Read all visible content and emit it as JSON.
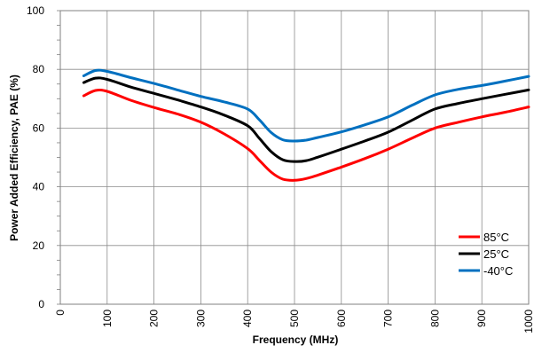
{
  "chart_data": {
    "type": "line",
    "title": "",
    "xlabel": "Frequency (MHz)",
    "ylabel": "Power Added  Efficiency, PAE (%)",
    "xlim": [
      0,
      1000
    ],
    "ylim": [
      0,
      100
    ],
    "x_ticks": [
      0,
      100,
      200,
      300,
      400,
      500,
      600,
      700,
      800,
      900,
      1000
    ],
    "y_ticks": [
      0,
      20,
      40,
      60,
      80,
      100
    ],
    "x_tick_labels": [
      "0",
      "100",
      "200",
      "300",
      "400",
      "500",
      "600",
      "700",
      "800",
      "900",
      "1000"
    ],
    "y_tick_labels": [
      "0",
      "20",
      "40",
      "60",
      "80",
      "100"
    ],
    "grid": true,
    "legend_position": "bottom-right",
    "x": [
      50,
      75,
      100,
      150,
      200,
      250,
      300,
      350,
      400,
      425,
      450,
      475,
      500,
      525,
      550,
      600,
      650,
      700,
      750,
      800,
      850,
      900,
      950,
      1000
    ],
    "series": [
      {
        "name": "85°C",
        "color": "#ff0000",
        "values": [
          71,
          72.8,
          72.5,
          69.5,
          67,
          64.8,
          62,
          58,
          53,
          49,
          45,
          42.6,
          42.2,
          42.8,
          44,
          46.7,
          49.6,
          52.8,
          56.5,
          60,
          62,
          63.8,
          65.4,
          67.2
        ]
      },
      {
        "name": "25°C",
        "color": "#000000",
        "values": [
          75.5,
          77,
          76.6,
          74,
          71.8,
          69.6,
          67.2,
          64.4,
          60.8,
          56.5,
          52,
          49.2,
          48.6,
          48.9,
          50.1,
          52.8,
          55.6,
          58.6,
          62.6,
          66.5,
          68.4,
          70,
          71.5,
          73
        ]
      },
      {
        "name": "-40°C",
        "color": "#0070c0",
        "values": [
          77.8,
          79.6,
          79.3,
          77.2,
          75.2,
          73,
          70.8,
          68.9,
          66.5,
          62.8,
          58.5,
          56,
          55.6,
          55.9,
          56.8,
          58.7,
          61.1,
          63.8,
          67.7,
          71.3,
          73.2,
          74.5,
          76,
          77.6
        ]
      }
    ]
  }
}
